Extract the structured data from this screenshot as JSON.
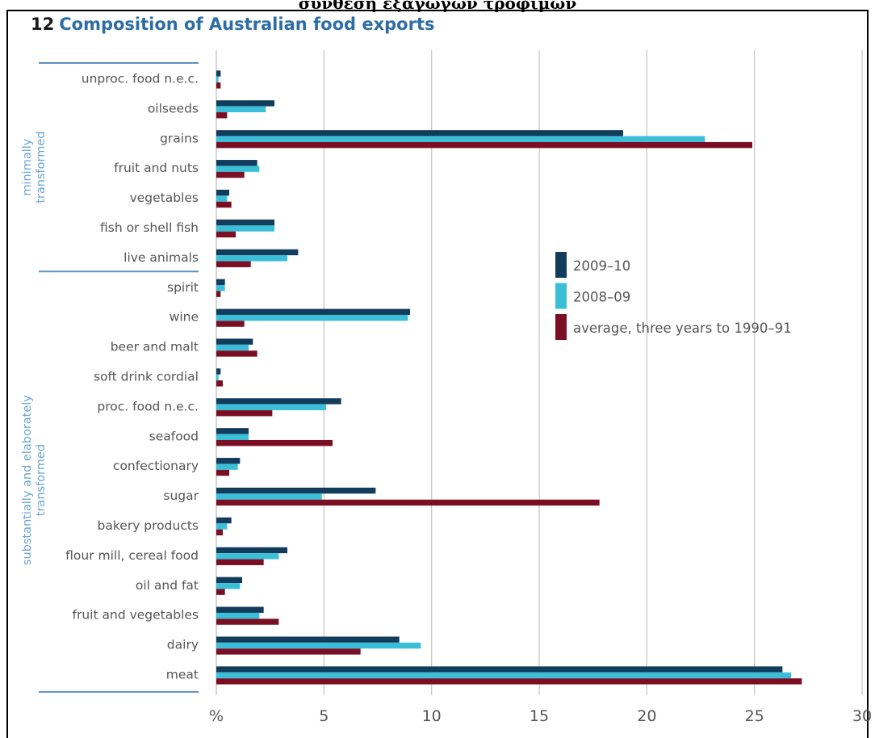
{
  "header_caption": "σύνθεση εξαγωγών τροφίμων",
  "figure_number": "12",
  "chart_data": {
    "type": "bar",
    "orientation": "horizontal",
    "title": "Composition of Australian food exports",
    "xlabel": "%",
    "xlim": [
      0,
      30
    ],
    "x_ticks": [
      "%",
      "5",
      "10",
      "15",
      "20",
      "25",
      "30"
    ],
    "grid": true,
    "legend_position": "center-right",
    "categories": [
      "unproc. food n.e.c.",
      "oilseeds",
      "grains",
      "fruit and nuts",
      "vegetables",
      "fish or shell fish",
      "live animals",
      "spirit",
      "wine",
      "beer and malt",
      "soft drink cordial",
      "proc. food n.e.c.",
      "seafood",
      "confectionary",
      "sugar",
      "bakery products",
      "flour mill, cereal food",
      "oil and fat",
      "fruit and vegetables",
      "dairy",
      "meat"
    ],
    "groups": [
      {
        "label": "minimally transformed",
        "lines": [
          "minimally",
          "transformed"
        ],
        "start": 0,
        "end": 6
      },
      {
        "label": "substantially and elaborately transformed",
        "lines": [
          "substantially and elaborately",
          "transformed"
        ],
        "start": 7,
        "end": 20
      }
    ],
    "series": [
      {
        "name": "2009–10",
        "color": "#123c5c",
        "values": [
          0.2,
          2.7,
          18.9,
          1.9,
          0.6,
          2.7,
          3.8,
          0.4,
          9.0,
          1.7,
          0.2,
          5.8,
          1.5,
          1.1,
          7.4,
          0.7,
          3.3,
          1.2,
          2.2,
          8.5,
          26.3
        ]
      },
      {
        "name": "2008–09",
        "color": "#3bbfd9",
        "values": [
          0.1,
          2.3,
          22.7,
          2.0,
          0.5,
          2.7,
          3.3,
          0.4,
          8.9,
          1.5,
          0.1,
          5.1,
          1.5,
          1.0,
          4.9,
          0.5,
          2.9,
          1.1,
          2.0,
          9.5,
          26.7
        ]
      },
      {
        "name": "average, three years to 1990–91",
        "color": "#7a0f24",
        "values": [
          0.2,
          0.5,
          24.9,
          1.3,
          0.7,
          0.9,
          1.6,
          0.2,
          1.3,
          1.9,
          0.3,
          2.6,
          5.4,
          0.6,
          17.8,
          0.3,
          2.2,
          0.4,
          2.9,
          6.7,
          27.2
        ]
      }
    ]
  }
}
